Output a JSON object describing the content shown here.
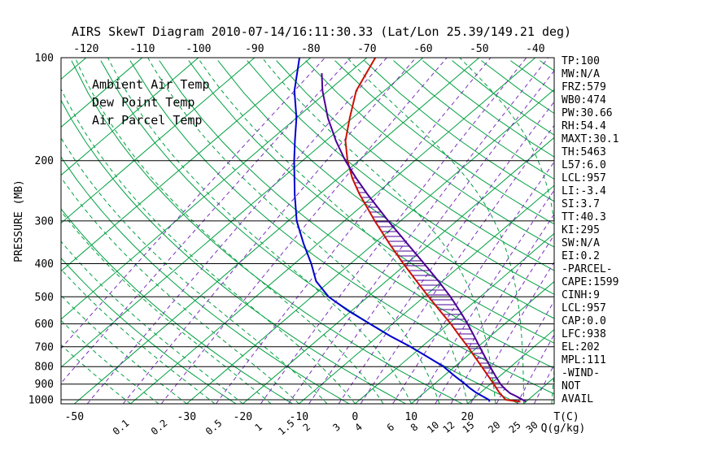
{
  "title": "AIRS SkewT Diagram 2010-07-14/16:11:30.33 (Lat/Lon 25.39/149.21 deg)",
  "legend": {
    "ambient": {
      "label": "Ambient Air Temp"
    },
    "dewpoint": {
      "label": "Dew Point Temp"
    },
    "parcel": {
      "label": "Air Parcel Temp"
    }
  },
  "colors": {
    "ambient": "#CC1100",
    "dewpoint": "#0000CC",
    "parcel": "#4B0096",
    "grid_green": "#00A040",
    "mixing_purple": "#7B2FBE",
    "axis_black": "#000000"
  },
  "axes": {
    "pressure_label": "PRESSURE (MB)",
    "pressure_ticks": [
      100,
      200,
      300,
      400,
      500,
      600,
      700,
      800,
      900,
      1000
    ],
    "top_temp_ticks_c": [
      -120,
      -110,
      -100,
      -90,
      -80,
      -70,
      -60,
      -50,
      -40
    ],
    "bottom_temp_ticks_c": [
      -50,
      -30,
      -20,
      -10,
      0,
      10,
      20
    ],
    "temp_unit_label": "T(C)",
    "mixing_unit_label": "Q(g/kg)",
    "mixing_ratio_labels_gkg": [
      0.1,
      0.2,
      0.5,
      1,
      1.5,
      2,
      3,
      4,
      6,
      8,
      10,
      12,
      15,
      20,
      25,
      30
    ]
  },
  "chart_data": {
    "type": "line",
    "diagram": "skew-t-log-p",
    "pressure_axis_mb": {
      "min": 100,
      "max": 1027,
      "scale": "log",
      "gridlines": [
        100,
        200,
        300,
        400,
        500,
        600,
        700,
        800,
        900,
        1000
      ]
    },
    "temperature_axis_c": {
      "labels_at_100mb": [
        -120,
        -110,
        -100,
        -90,
        -80,
        -70,
        -60,
        -50,
        -40
      ],
      "labels_at_surface": [
        -50,
        -30,
        -20,
        -10,
        0,
        10,
        20
      ]
    },
    "isotherms_c": [
      -160,
      -150,
      -140,
      -130,
      -120,
      -110,
      -100,
      -90,
      -80,
      -70,
      -60,
      -50,
      -40,
      -30,
      -20,
      -10,
      0,
      10,
      20,
      30,
      40
    ],
    "dry_adiabats_theta_k": [
      250,
      260,
      270,
      280,
      290,
      300,
      310,
      320,
      330,
      340,
      350,
      360,
      370,
      380,
      390,
      400,
      410,
      420,
      430,
      440,
      450
    ],
    "moist_adiabats_surface_c": [
      -40,
      -35,
      -30,
      -25,
      -20,
      -15,
      -10,
      -5,
      0,
      5,
      10,
      15,
      20,
      25,
      30,
      35,
      40
    ],
    "mixing_ratio_lines_gkg": [
      0.01,
      0.02,
      0.05,
      0.1,
      0.2,
      0.5,
      1,
      1.5,
      2,
      3,
      4,
      6,
      8,
      10,
      12,
      15,
      20,
      25,
      30
    ],
    "series": [
      {
        "name": "Ambient Air Temp",
        "color_key": "ambient",
        "points_p_t": [
          [
            1013,
            29
          ],
          [
            1000,
            26
          ],
          [
            975,
            24.6
          ],
          [
            950,
            23.2
          ],
          [
            925,
            21.9
          ],
          [
            900,
            20.6
          ],
          [
            850,
            17.8
          ],
          [
            800,
            14.8
          ],
          [
            750,
            11.6
          ],
          [
            700,
            8.2
          ],
          [
            650,
            4.4
          ],
          [
            600,
            0.4
          ],
          [
            550,
            -4.2
          ],
          [
            500,
            -9.2
          ],
          [
            450,
            -14.6
          ],
          [
            400,
            -20.6
          ],
          [
            350,
            -27.2
          ],
          [
            300,
            -34.6
          ],
          [
            250,
            -43
          ],
          [
            225,
            -47.5
          ],
          [
            200,
            -52
          ],
          [
            175,
            -56.5
          ],
          [
            150,
            -60.5
          ],
          [
            125,
            -65
          ],
          [
            100,
            -68.5
          ]
        ]
      },
      {
        "name": "Dew Point Temp",
        "color_key": "dewpoint",
        "points_p_t": [
          [
            1013,
            23.5
          ],
          [
            1000,
            23
          ],
          [
            975,
            21
          ],
          [
            950,
            19
          ],
          [
            925,
            17.2
          ],
          [
            900,
            15.5
          ],
          [
            850,
            11.8
          ],
          [
            800,
            8
          ],
          [
            750,
            3.2
          ],
          [
            700,
            -2
          ],
          [
            650,
            -8
          ],
          [
            600,
            -14
          ],
          [
            550,
            -20.5
          ],
          [
            500,
            -27
          ],
          [
            450,
            -32.5
          ],
          [
            400,
            -37
          ],
          [
            350,
            -42.5
          ],
          [
            300,
            -48.5
          ],
          [
            250,
            -54.5
          ],
          [
            200,
            -61.5
          ],
          [
            175,
            -65.5
          ],
          [
            150,
            -70
          ],
          [
            125,
            -76
          ],
          [
            100,
            -82
          ]
        ]
      },
      {
        "name": "Air Parcel Temp",
        "color_key": "parcel",
        "points_p_t": [
          [
            1013,
            30
          ],
          [
            1000,
            29
          ],
          [
            975,
            27
          ],
          [
            957,
            25.4
          ],
          [
            925,
            23.3
          ],
          [
            900,
            21.8
          ],
          [
            850,
            19.1
          ],
          [
            800,
            16.3
          ],
          [
            750,
            13.4
          ],
          [
            700,
            10.3
          ],
          [
            650,
            7
          ],
          [
            600,
            3.4
          ],
          [
            550,
            -0.7
          ],
          [
            500,
            -5.3
          ],
          [
            450,
            -10.7
          ],
          [
            400,
            -16.9
          ],
          [
            350,
            -24
          ],
          [
            300,
            -32.2
          ],
          [
            250,
            -41.6
          ],
          [
            225,
            -46.8
          ],
          [
            200,
            -52.4
          ],
          [
            175,
            -58.2
          ],
          [
            150,
            -64.4
          ],
          [
            125,
            -71
          ],
          [
            111,
            -74.8
          ]
        ]
      }
    ],
    "cape_hatch": {
      "between": [
        "Air Parcel Temp",
        "Ambient Air Temp"
      ],
      "pressure_range_mb": [
        203,
        938
      ]
    }
  },
  "stats_panel": {
    "lines": [
      "TP:100",
      "MW:N/A",
      "FRZ:579",
      "WB0:474",
      "PW:30.66",
      "RH:54.4",
      "MAXT:30.1",
      "TH:5463",
      "L57:6.0",
      "LCL:957",
      "LI:-3.4",
      "SI:3.7",
      "TT:40.3",
      "KI:295",
      "SW:N/A",
      "EI:0.2",
      "-PARCEL-",
      "CAPE:1599",
      "CINH:9",
      "LCL:957",
      "CAP:0.0",
      "LFC:938",
      "EL:202",
      "MPL:111",
      "-WIND-",
      "NOT",
      "AVAIL"
    ]
  }
}
